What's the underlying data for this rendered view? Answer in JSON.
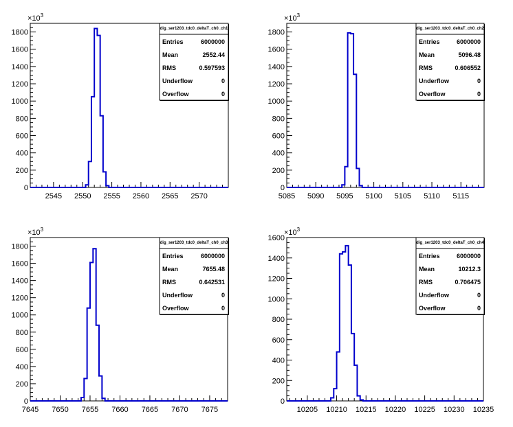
{
  "chart_data": [
    {
      "type": "bar",
      "title": "",
      "xlabel": "",
      "ylabel": "",
      "exponent_label": "10",
      "exponent_power": "3",
      "xlim": [
        2541,
        2575
      ],
      "ylim": [
        0,
        1900
      ],
      "xticks": [
        2545,
        2550,
        2555,
        2560,
        2565,
        2570
      ],
      "xtick_labels": [
        "2545",
        "2550",
        "2555",
        "2560",
        "2565",
        "2570"
      ],
      "yticks": [
        0,
        200,
        400,
        600,
        800,
        1000,
        1200,
        1400,
        1600,
        1800
      ],
      "ytick_labels": [
        "0",
        "200",
        "400",
        "600",
        "800",
        "1000",
        "1200",
        "1400",
        "1600",
        "1800"
      ],
      "bin_edges": [
        2550.5,
        2551,
        2551.5,
        2552,
        2552.5,
        2553,
        2553.5,
        2554,
        2554.5
      ],
      "values": [
        30,
        300,
        1050,
        1840,
        1760,
        830,
        180,
        20
      ],
      "line_color": "#0000cc",
      "stats": {
        "title": "dig_ser1203_tdc0_deltaT_ch0_ch1",
        "rows": [
          {
            "label": "Entries",
            "value": "6000000"
          },
          {
            "label": "Mean",
            "value": "2552.44"
          },
          {
            "label": "RMS",
            "value": "0.597593"
          },
          {
            "label": "Underflow",
            "value": "0"
          },
          {
            "label": "Overflow",
            "value": "0"
          }
        ]
      }
    },
    {
      "type": "bar",
      "title": "",
      "xlabel": "",
      "ylabel": "",
      "exponent_label": "10",
      "exponent_power": "3",
      "xlim": [
        5085,
        5119
      ],
      "ylim": [
        0,
        1900
      ],
      "xticks": [
        5085,
        5090,
        5095,
        5100,
        5105,
        5110,
        5115
      ],
      "xtick_labels": [
        "5085",
        "5090",
        "5095",
        "5100",
        "5105",
        "5110",
        "5115"
      ],
      "yticks": [
        0,
        200,
        400,
        600,
        800,
        1000,
        1200,
        1400,
        1600,
        1800
      ],
      "ytick_labels": [
        "0",
        "200",
        "400",
        "600",
        "800",
        "1000",
        "1200",
        "1400",
        "1600",
        "1800"
      ],
      "bin_edges": [
        5094.5,
        5095,
        5095.5,
        5096,
        5096.5,
        5097,
        5097.5,
        5098,
        5098.5
      ],
      "values": [
        30,
        240,
        1790,
        1780,
        1310,
        220,
        20,
        0
      ],
      "line_color": "#0000cc",
      "stats": {
        "title": "dig_ser1203_tdc0_deltaT_ch0_ch2",
        "rows": [
          {
            "label": "Entries",
            "value": "6000000"
          },
          {
            "label": "Mean",
            "value": "5096.48"
          },
          {
            "label": "RMS",
            "value": "0.606552"
          },
          {
            "label": "Underflow",
            "value": "0"
          },
          {
            "label": "Overflow",
            "value": "0"
          }
        ]
      }
    },
    {
      "type": "bar",
      "title": "",
      "xlabel": "",
      "ylabel": "",
      "exponent_label": "10",
      "exponent_power": "3",
      "xlim": [
        7645,
        7678
      ],
      "ylim": [
        0,
        1900
      ],
      "xticks": [
        7645,
        7650,
        7655,
        7660,
        7665,
        7670,
        7675
      ],
      "xtick_labels": [
        "7645",
        "7650",
        "7655",
        "7660",
        "7665",
        "7670",
        "7675"
      ],
      "yticks": [
        0,
        200,
        400,
        600,
        800,
        1000,
        1200,
        1400,
        1600,
        1800
      ],
      "ytick_labels": [
        "0",
        "200",
        "400",
        "600",
        "800",
        "1000",
        "1200",
        "1400",
        "1600",
        "1800"
      ],
      "bin_edges": [
        7653.5,
        7654,
        7654.5,
        7655,
        7655.5,
        7656,
        7656.5,
        7657,
        7657.5
      ],
      "values": [
        40,
        260,
        1080,
        1610,
        1770,
        880,
        290,
        30
      ],
      "line_color": "#0000cc",
      "stats": {
        "title": "dig_ser1203_tdc0_deltaT_ch0_ch3",
        "rows": [
          {
            "label": "Entries",
            "value": "6000000"
          },
          {
            "label": "Mean",
            "value": "7655.48"
          },
          {
            "label": "RMS",
            "value": "0.642531"
          },
          {
            "label": "Underflow",
            "value": "0"
          },
          {
            "label": "Overflow",
            "value": "0"
          }
        ]
      }
    },
    {
      "type": "bar",
      "title": "",
      "xlabel": "",
      "ylabel": "",
      "exponent_label": "10",
      "exponent_power": "3",
      "xlim": [
        10201.5,
        10235
      ],
      "ylim": [
        0,
        1600
      ],
      "xticks": [
        10205,
        10210,
        10215,
        10220,
        10225,
        10230,
        10235
      ],
      "xtick_labels": [
        "10205",
        "10210",
        "10215",
        "10220",
        "10225",
        "10230",
        "10235"
      ],
      "yticks": [
        0,
        200,
        400,
        600,
        800,
        1000,
        1200,
        1400,
        1600
      ],
      "ytick_labels": [
        "0",
        "200",
        "400",
        "600",
        "800",
        "1000",
        "1200",
        "1400",
        "1600"
      ],
      "bin_edges": [
        10209,
        10209.5,
        10210,
        10210.5,
        10211,
        10211.5,
        10212,
        10212.5,
        10213,
        10213.5,
        10214,
        10214.5,
        10215
      ],
      "values": [
        30,
        120,
        480,
        1440,
        1460,
        1520,
        1330,
        660,
        350,
        50,
        10,
        0
      ],
      "line_color": "#0000cc",
      "stats": {
        "title": "dig_ser1203_tdc0_deltaT_ch0_ch4",
        "rows": [
          {
            "label": "Entries",
            "value": "6000000"
          },
          {
            "label": "Mean",
            "value": "10212.3"
          },
          {
            "label": "RMS",
            "value": "0.706475"
          },
          {
            "label": "Underflow",
            "value": "0"
          },
          {
            "label": "Overflow",
            "value": "0"
          }
        ]
      }
    }
  ]
}
